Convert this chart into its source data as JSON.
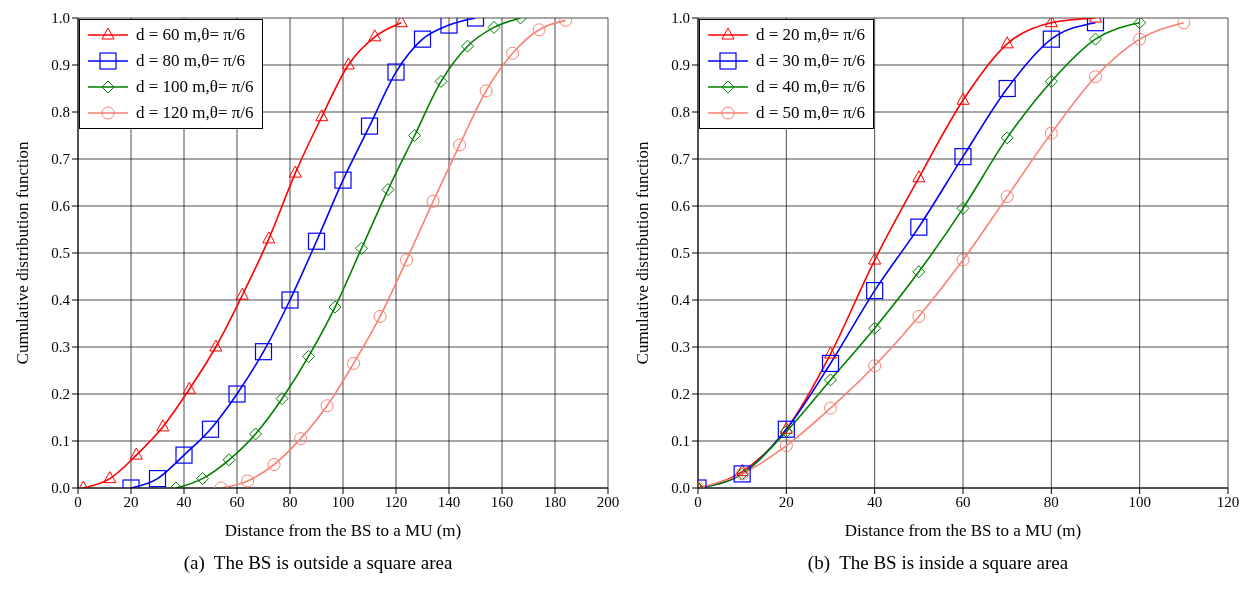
{
  "chart_data": [
    {
      "type": "line",
      "xlabel": "Distance from the BS to a MU (m)",
      "ylabel": "Cumulative distribution function",
      "annotations": [
        "(a)  The BS is outside a square area"
      ],
      "xlim": [
        0,
        200
      ],
      "xticks": [
        0,
        20,
        40,
        60,
        80,
        100,
        120,
        140,
        160,
        180,
        200
      ],
      "ylim": [
        0,
        1
      ],
      "yticks": [
        {
          "value": 0,
          "label": "0.0"
        },
        {
          "value": 0.1,
          "label": "0.1"
        },
        {
          "value": 0.2,
          "label": "0.2"
        },
        {
          "value": 0.3,
          "label": "0.3"
        },
        {
          "value": 0.4,
          "label": "0.4"
        },
        {
          "value": 0.5,
          "label": "0.5"
        },
        {
          "value": 0.6,
          "label": "0.6"
        },
        {
          "value": 0.7,
          "label": "0.7"
        },
        {
          "value": 0.8,
          "label": "0.8"
        },
        {
          "value": 0.9,
          "label": "0.9"
        },
        {
          "value": 1,
          "label": "1.0"
        }
      ],
      "grid": true,
      "legend": "top left",
      "line_style": "solid",
      "series": [
        {
          "name": "d = 60 m,θ= π/6",
          "color": "#ff0000",
          "marker": "triangle",
          "x": [
            2,
            12,
            22,
            32,
            42,
            52,
            62,
            72,
            82,
            92,
            102,
            112,
            122
          ],
          "values": [
            0,
            0.02,
            0.07,
            0.13,
            0.21,
            0.3,
            0.41,
            0.53,
            0.67,
            0.79,
            0.9,
            0.96,
            0.99
          ]
        },
        {
          "name": "d = 80 m,θ= π/6",
          "color": "#0000ff",
          "marker": "square",
          "x": [
            20,
            30,
            40,
            50,
            60,
            70,
            80,
            90,
            100,
            110,
            120,
            130,
            140,
            150
          ],
          "values": [
            0,
            0.02,
            0.07,
            0.125,
            0.2,
            0.29,
            0.4,
            0.525,
            0.655,
            0.77,
            0.885,
            0.955,
            0.985,
            1
          ]
        },
        {
          "name": "d = 100 m,θ= π/6",
          "color": "#008000",
          "marker": "diamond",
          "x": [
            37,
            47,
            57,
            67,
            77,
            87,
            97,
            107,
            117,
            127,
            137,
            147,
            157,
            167
          ],
          "values": [
            0,
            0.02,
            0.06,
            0.115,
            0.19,
            0.28,
            0.385,
            0.51,
            0.635,
            0.75,
            0.865,
            0.94,
            0.98,
            1
          ]
        },
        {
          "name": "d = 120 m,θ= π/6",
          "color": "#fa8072",
          "marker": "circle",
          "x": [
            54,
            64,
            74,
            84,
            94,
            104,
            114,
            124,
            134,
            144,
            154,
            164,
            174,
            184
          ],
          "values": [
            0,
            0.015,
            0.05,
            0.105,
            0.175,
            0.265,
            0.365,
            0.485,
            0.61,
            0.73,
            0.845,
            0.925,
            0.975,
            0.995
          ]
        }
      ]
    },
    {
      "type": "line",
      "xlabel": "Distance from the BS to a MU (m)",
      "ylabel": "Cumulative distribution function",
      "annotations": [
        "(b)  The BS is inside a square area"
      ],
      "xlim": [
        0,
        120
      ],
      "xticks": [
        0,
        20,
        40,
        60,
        80,
        100,
        120
      ],
      "ylim": [
        0,
        1
      ],
      "yticks": [
        {
          "value": 0,
          "label": "0.0"
        },
        {
          "value": 0.1,
          "label": "0.1"
        },
        {
          "value": 0.2,
          "label": "0.2"
        },
        {
          "value": 0.3,
          "label": "0.3"
        },
        {
          "value": 0.4,
          "label": "0.4"
        },
        {
          "value": 0.5,
          "label": "0.5"
        },
        {
          "value": 0.6,
          "label": "0.6"
        },
        {
          "value": 0.7,
          "label": "0.7"
        },
        {
          "value": 0.8,
          "label": "0.8"
        },
        {
          "value": 0.9,
          "label": "0.9"
        },
        {
          "value": 1,
          "label": "1.0"
        }
      ],
      "grid": true,
      "legend": "top left",
      "line_style": "solid",
      "series": [
        {
          "name": "d = 20 m,θ= π/6",
          "color": "#ff0000",
          "marker": "triangle",
          "x": [
            0,
            10,
            20,
            30,
            40,
            50,
            60,
            70,
            80,
            90
          ],
          "values": [
            0,
            0.035,
            0.125,
            0.285,
            0.485,
            0.66,
            0.825,
            0.945,
            0.99,
            1
          ]
        },
        {
          "name": "d = 30 m,θ= π/6",
          "color": "#0000ff",
          "marker": "square",
          "x": [
            0,
            10,
            20,
            30,
            40,
            50,
            60,
            70,
            80,
            90
          ],
          "values": [
            0,
            0.03,
            0.125,
            0.265,
            0.42,
            0.555,
            0.705,
            0.85,
            0.955,
            0.99
          ]
        },
        {
          "name": "d = 40 m,θ= π/6",
          "color": "#008000",
          "marker": "diamond",
          "x": [
            0,
            10,
            20,
            30,
            40,
            50,
            60,
            70,
            80,
            90,
            100
          ],
          "values": [
            0,
            0.03,
            0.12,
            0.23,
            0.34,
            0.46,
            0.595,
            0.745,
            0.865,
            0.955,
            0.99
          ]
        },
        {
          "name": "d = 50 m,θ= π/6",
          "color": "#fa8072",
          "marker": "circle",
          "x": [
            0,
            10,
            20,
            30,
            40,
            50,
            60,
            70,
            80,
            90,
            100,
            110
          ],
          "values": [
            0,
            0.03,
            0.09,
            0.17,
            0.26,
            0.365,
            0.485,
            0.62,
            0.755,
            0.875,
            0.955,
            0.99
          ]
        }
      ]
    }
  ]
}
